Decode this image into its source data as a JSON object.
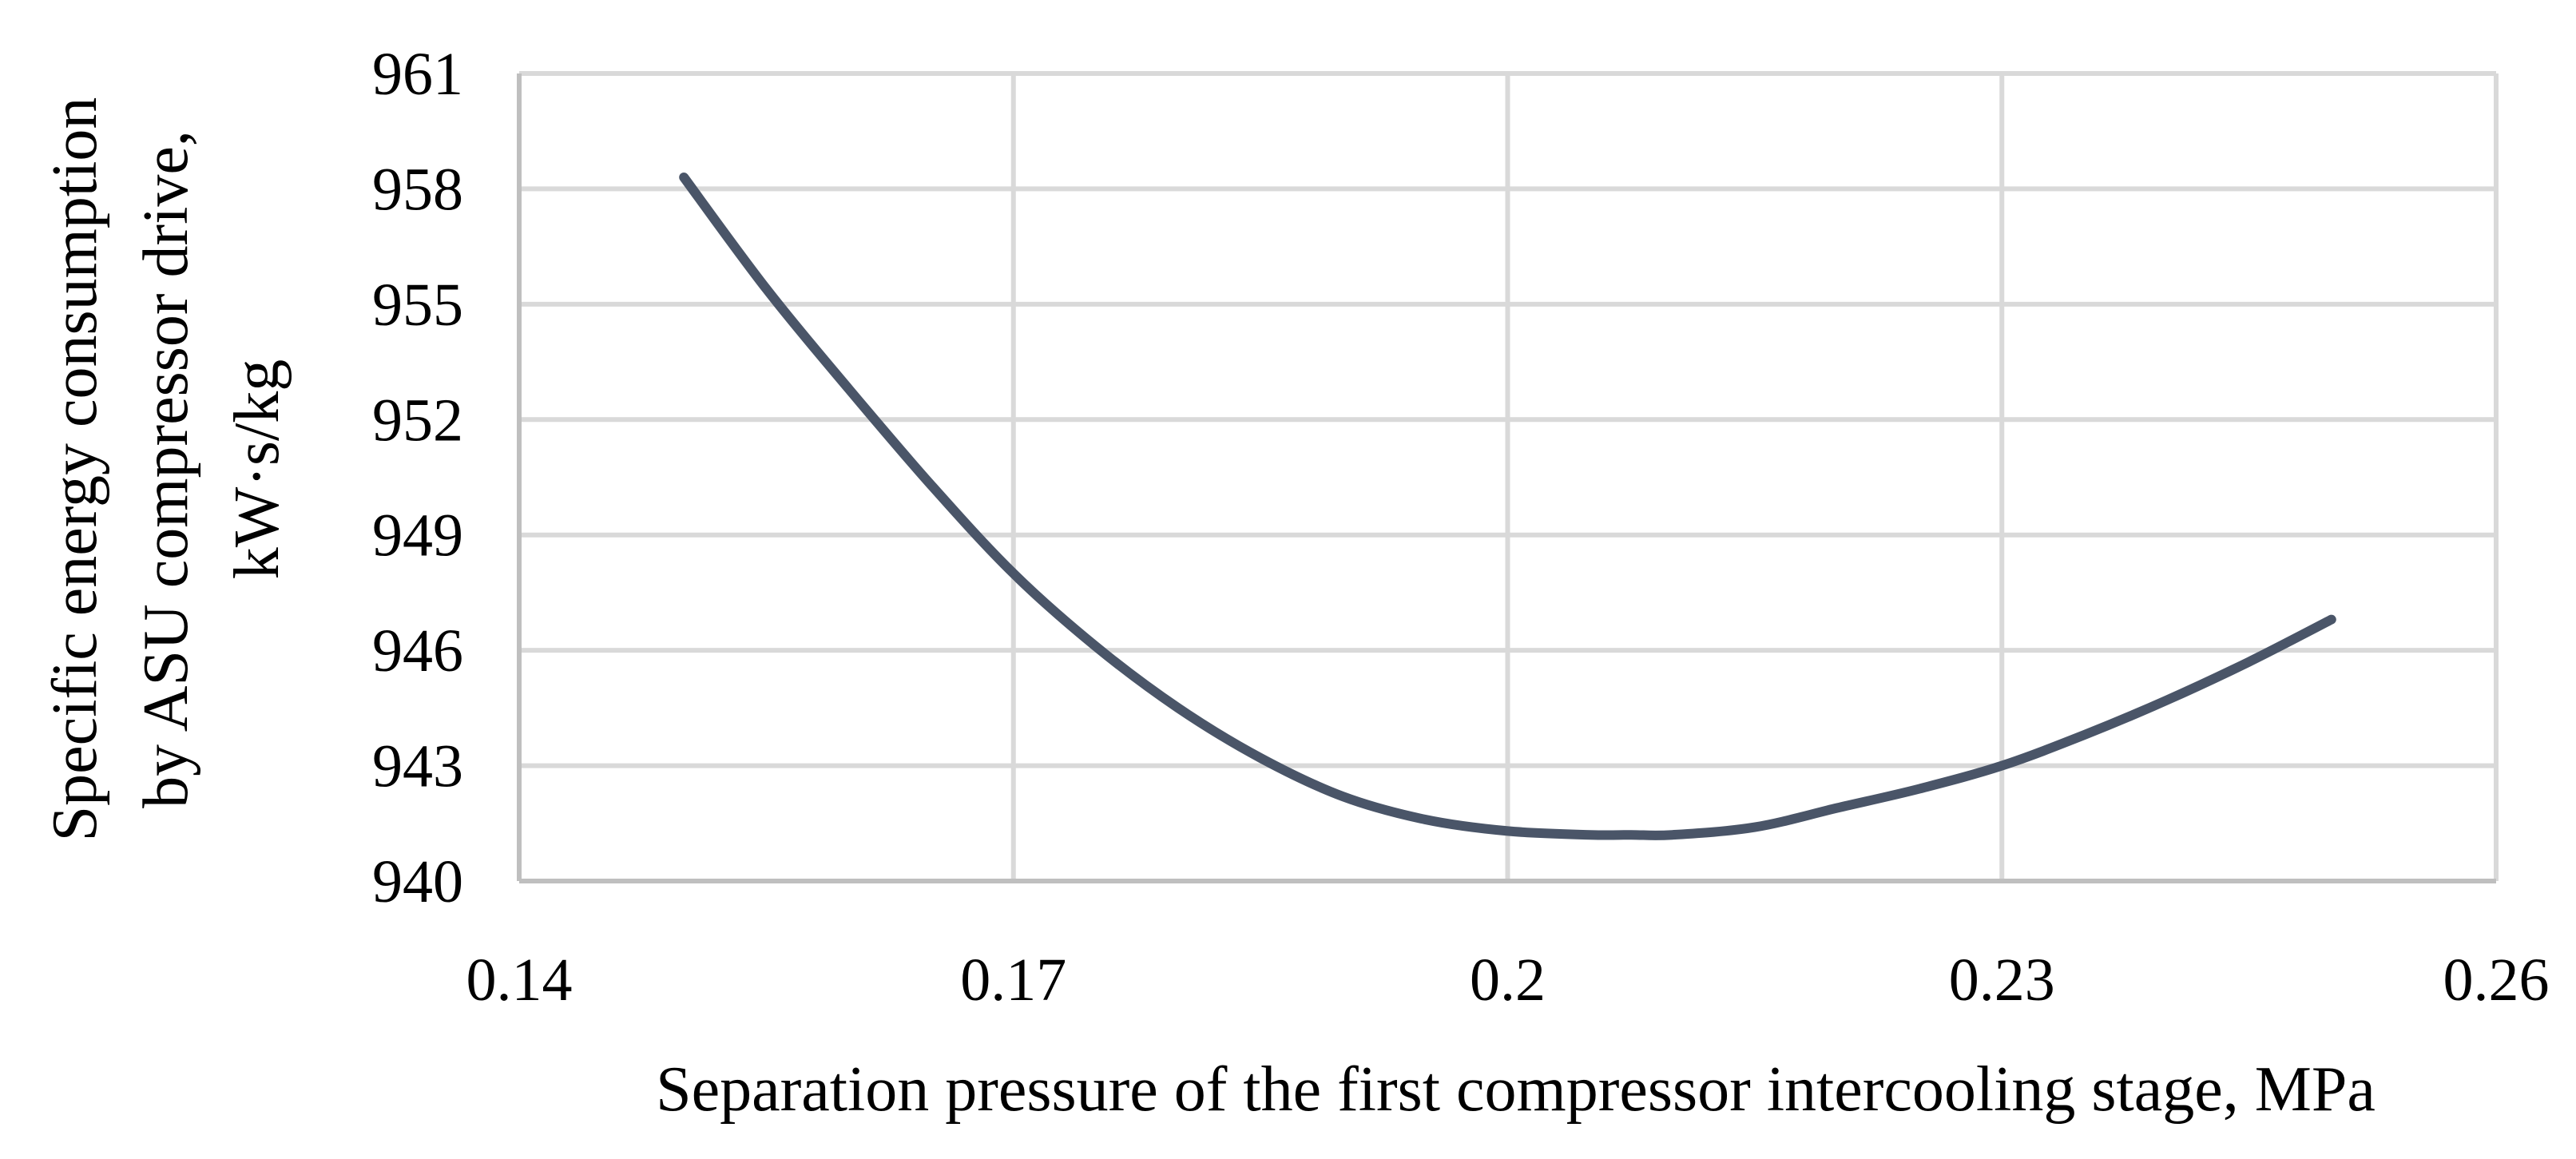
{
  "chart_data": {
    "type": "line",
    "title": "",
    "xlabel": "Separation pressure of the first compressor intercooling stage, MPa",
    "ylabel_lines": [
      "Specific energy consumption",
      "by ASU compressor drive,",
      "kW·s/kg"
    ],
    "xlim": [
      0.14,
      0.26
    ],
    "ylim": [
      940,
      961
    ],
    "xticks": [
      "0.14",
      "0.17",
      "0.2",
      "0.23",
      "0.26"
    ],
    "yticks": [
      "940",
      "943",
      "946",
      "949",
      "952",
      "955",
      "958",
      "961"
    ],
    "grid": true,
    "legend": "none",
    "series": [
      {
        "color": "#4a5568",
        "x": [
          0.15,
          0.155,
          0.16,
          0.165,
          0.17,
          0.175,
          0.18,
          0.185,
          0.19,
          0.195,
          0.2,
          0.205,
          0.2075,
          0.21,
          0.215,
          0.22,
          0.225,
          0.23,
          0.235,
          0.24,
          0.245,
          0.25
        ],
        "y": [
          958.3,
          955.4,
          952.8,
          950.3,
          948.0,
          946.1,
          944.5,
          943.2,
          942.2,
          941.6,
          941.3,
          941.2,
          941.2,
          941.2,
          941.4,
          941.9,
          942.4,
          943.0,
          943.8,
          944.7,
          945.7,
          946.8
        ]
      }
    ]
  }
}
